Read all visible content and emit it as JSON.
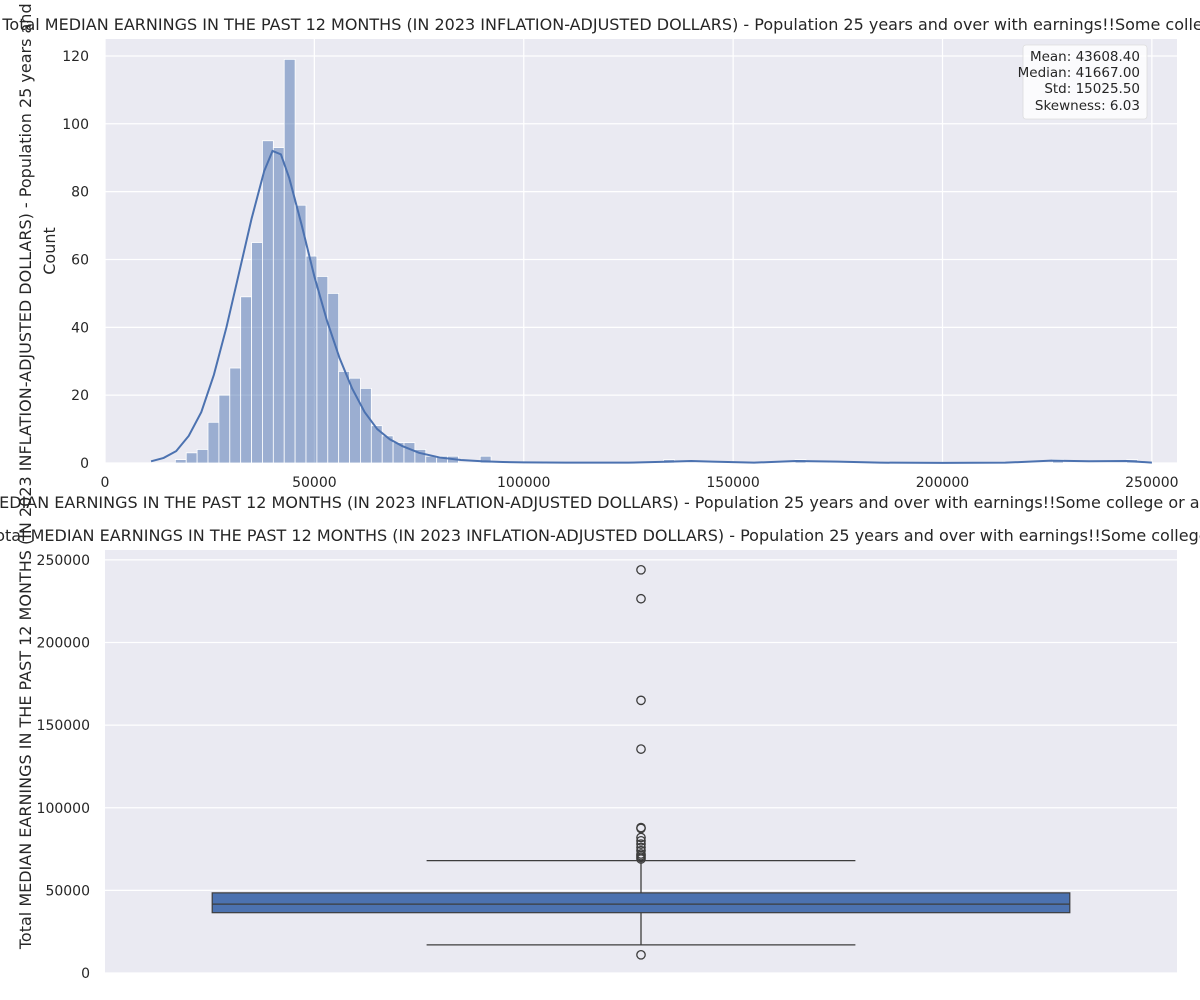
{
  "chart_data": [
    {
      "type": "bar",
      "title": "Distribution of Total MEDIAN EARNINGS IN THE PAST 12 MONTHS (IN 2023 INFLATION-ADJUSTED DOLLARS) - Population 25 years and over with earnings!!Some college or associate's degree",
      "xlabel": "Total MEDIAN EARNINGS IN THE PAST 12 MONTHS (IN 2023 INFLATION-ADJUSTED DOLLARS) - Population 25 years and over with earnings!!Some college or associate's degree",
      "ylabel": "Count",
      "xlim": [
        0,
        256000
      ],
      "ylim": [
        0,
        125
      ],
      "xticks": [
        0,
        50000,
        100000,
        150000,
        200000,
        250000
      ],
      "yticks": [
        0,
        20,
        40,
        60,
        80,
        100,
        120
      ],
      "grid": true,
      "bin_width": 2600,
      "bins": [
        {
          "x0": 16800,
          "count": 1
        },
        {
          "x0": 19400,
          "count": 3
        },
        {
          "x0": 22000,
          "count": 4
        },
        {
          "x0": 24600,
          "count": 12
        },
        {
          "x0": 27200,
          "count": 20
        },
        {
          "x0": 29800,
          "count": 28
        },
        {
          "x0": 32400,
          "count": 49
        },
        {
          "x0": 35000,
          "count": 65
        },
        {
          "x0": 37600,
          "count": 95
        },
        {
          "x0": 40200,
          "count": 93
        },
        {
          "x0": 42800,
          "count": 119
        },
        {
          "x0": 45400,
          "count": 76
        },
        {
          "x0": 48000,
          "count": 61
        },
        {
          "x0": 50600,
          "count": 55
        },
        {
          "x0": 53200,
          "count": 50
        },
        {
          "x0": 55800,
          "count": 27
        },
        {
          "x0": 58400,
          "count": 25
        },
        {
          "x0": 61000,
          "count": 22
        },
        {
          "x0": 63600,
          "count": 11
        },
        {
          "x0": 66200,
          "count": 8
        },
        {
          "x0": 68800,
          "count": 6
        },
        {
          "x0": 71400,
          "count": 6
        },
        {
          "x0": 74000,
          "count": 4
        },
        {
          "x0": 76600,
          "count": 2
        },
        {
          "x0": 79200,
          "count": 2
        },
        {
          "x0": 81800,
          "count": 2
        },
        {
          "x0": 84400,
          "count": 0
        },
        {
          "x0": 87000,
          "count": 0
        },
        {
          "x0": 89600,
          "count": 2
        },
        {
          "x0": 133400,
          "count": 1
        },
        {
          "x0": 164800,
          "count": 1
        },
        {
          "x0": 226300,
          "count": 1
        },
        {
          "x0": 244000,
          "count": 1
        }
      ],
      "kde": {
        "x": [
          11000,
          14000,
          17000,
          20000,
          23000,
          26000,
          29000,
          32000,
          35000,
          38000,
          40000,
          42000,
          44000,
          47000,
          50000,
          53000,
          56000,
          59000,
          62000,
          65000,
          68000,
          71000,
          75000,
          80000,
          85000,
          90000,
          95000,
          100000,
          110000,
          125000,
          135000,
          140000,
          145000,
          155000,
          165000,
          175000,
          185000,
          200000,
          215000,
          226000,
          235000,
          244000,
          250000
        ],
        "y": [
          0.5,
          1.5,
          3.5,
          8,
          15,
          26,
          40,
          56,
          72,
          86,
          92,
          91,
          84,
          70,
          55,
          42,
          31,
          22,
          15,
          10,
          7,
          5,
          3,
          1.6,
          0.9,
          0.5,
          0.3,
          0.2,
          0.1,
          0.1,
          0.4,
          0.6,
          0.4,
          0.1,
          0.6,
          0.4,
          0.1,
          0.05,
          0.1,
          0.7,
          0.5,
          0.6,
          0.1
        ]
      },
      "stats": [
        "Mean: 43608.40",
        "Median: 41667.00",
        "Std: 15025.50",
        "Skewness: 6.03"
      ],
      "colors": {
        "bar": "#4c72b0",
        "kde": "#4c72b0",
        "background": "#eaeaf2"
      }
    },
    {
      "type": "box",
      "title": "Box Plot of Total MEDIAN EARNINGS IN THE PAST 12 MONTHS (IN 2023 INFLATION-ADJUSTED DOLLARS) - Population 25 years and over with earnings!!Some college or associate's degree",
      "ylabel": "Total MEDIAN EARNINGS IN THE PAST 12 MONTHS (IN 2023 INFLATION-ADJUSTED DOLLARS) - Population 25 years and over with earnings!!Some college or associate's degree",
      "ylim": [
        0,
        256000
      ],
      "yticks": [
        0,
        50000,
        100000,
        150000,
        200000,
        250000
      ],
      "grid": true,
      "q1": 36500,
      "median": 41667,
      "q3": 48500,
      "whisker_low": 17000,
      "whisker_high": 68000,
      "fliers": [
        11000,
        69000,
        70000,
        71000,
        72000,
        74000,
        76000,
        78000,
        80000,
        82000,
        87500,
        88000,
        135500,
        165000,
        226500,
        244000
      ],
      "colors": {
        "box": "#4c72b0",
        "line": "#3d3d3d",
        "background": "#eaeaf2"
      }
    }
  ]
}
